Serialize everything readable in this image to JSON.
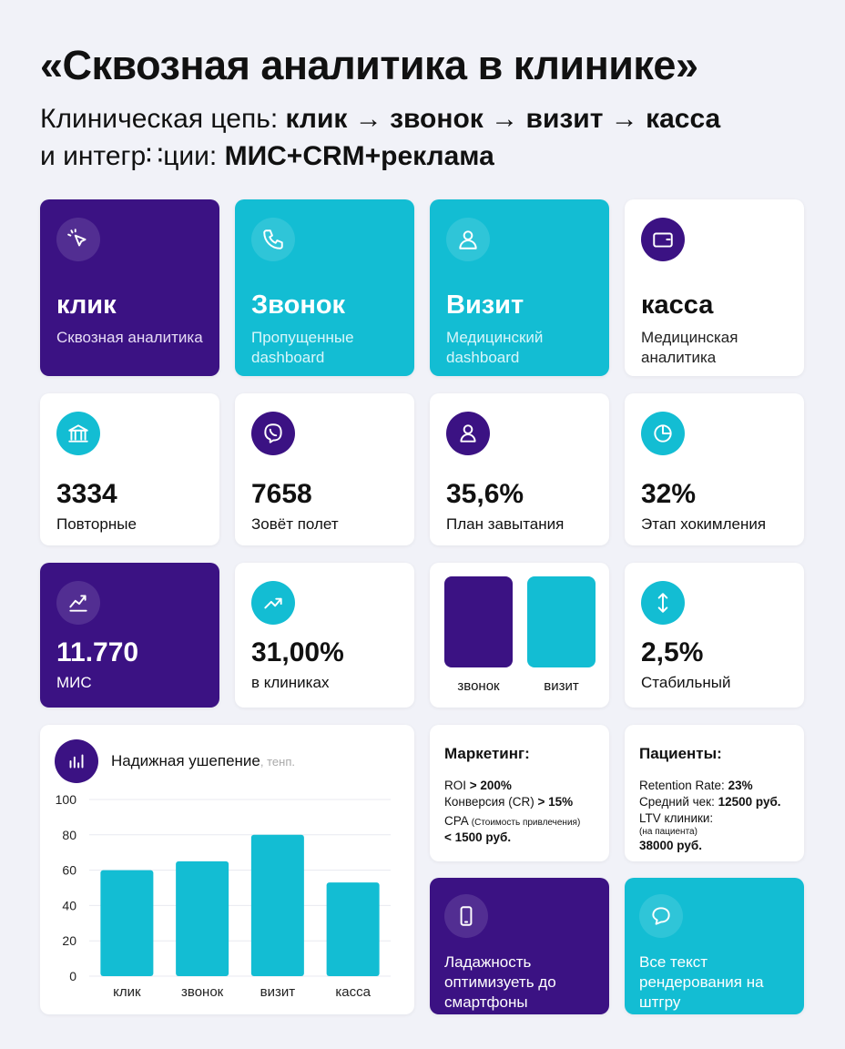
{
  "title": "«Сквозная аналитика в клинике»",
  "subtitle": {
    "line1_prefix": "Клиническая цепь: ",
    "line1_bold": "клик → звонок → визит → касса",
    "line2_prefix": "и интегр∷ции: ",
    "line2_bold": "МИС+CRM+реклама"
  },
  "colors": {
    "purple": "#3b1283",
    "cyan": "#13bdd3",
    "background": "#f1f2f8"
  },
  "stages": [
    {
      "icon": "cursor-click-icon",
      "title": "клик",
      "label": "Сквозная аналитика"
    },
    {
      "icon": "phone-icon",
      "title": "Звонок",
      "label": "Пропущенные dashboard"
    },
    {
      "icon": "doctor-icon",
      "title": "Визит",
      "label": "Медицинский dashboard"
    },
    {
      "icon": "wallet-icon",
      "title": "касса",
      "label": "Медицинская аналитика"
    }
  ],
  "stats": [
    {
      "icon": "bank-icon",
      "value": "3334",
      "label": "Повторные"
    },
    {
      "icon": "viber-icon",
      "value": "7658",
      "label": "Зовёт полет"
    },
    {
      "icon": "user-icon",
      "value": "35,6%",
      "label": "План завытания"
    },
    {
      "icon": "pie-chart-icon",
      "value": "32%",
      "label": "Этап хокимления"
    }
  ],
  "row3": [
    {
      "icon": "trend-icon",
      "value": "11.770",
      "label": "МИС"
    },
    {
      "icon": "trend-up-icon",
      "value": "31,00%",
      "label": "в клиниках"
    },
    {
      "swatches": [
        "звонок",
        "визит"
      ]
    },
    {
      "icon": "arrows-vertical-icon",
      "value": "2,5%",
      "label": "Стабильный"
    }
  ],
  "marketing": {
    "title": "Маркетинг:",
    "roi_label": "ROI ",
    "roi_value": "> 200%",
    "cr_label": "Конверсия (CR) ",
    "cr_value": "> 15%",
    "cpa_label": "CPA ",
    "cpa_note": "(Стоимость привлечения)",
    "cpa_value": "< 1500 руб."
  },
  "patients": {
    "title": "Пациенты:",
    "rr_label": "Retention Rate: ",
    "rr_value": "23%",
    "check_label": "Средний чек: ",
    "check_value": "12500 руб.",
    "ltv_label": "LTV клиники:",
    "ltv_note": "(на пациента)",
    "ltv_value": "38000 руб."
  },
  "bottom": [
    {
      "icon": "smartphone-icon",
      "label": "Ладажность оптимизуеть до смартфоны"
    },
    {
      "icon": "chat-icon",
      "label": "Все текст рендерования на штгру"
    }
  ],
  "chart_data": {
    "type": "bar",
    "title": "Надижная ушепение",
    "title_suffix": ", тенп.",
    "categories": [
      "клик",
      "звонок",
      "визит",
      "касса"
    ],
    "values": [
      60,
      65,
      80,
      53
    ],
    "yticks": [
      "0",
      "20",
      "40",
      "60",
      "80",
      "100"
    ],
    "ylim": [
      0,
      100
    ],
    "grid": true,
    "color": "#13bdd3"
  }
}
